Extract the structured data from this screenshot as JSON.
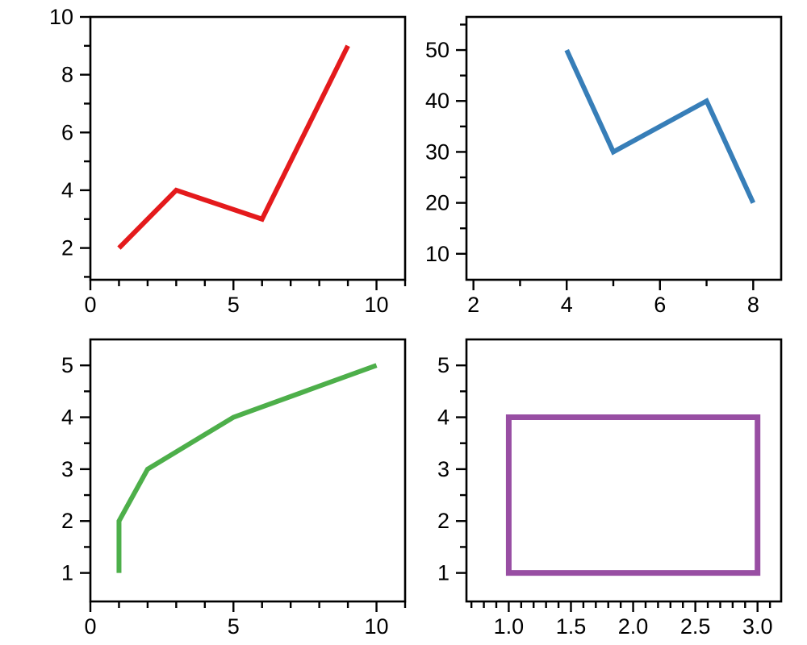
{
  "figure": {
    "background": "#ffffff",
    "axis_color": "#000000",
    "tick_label_color": "#000000",
    "grid": false,
    "legend": null
  },
  "chart_data": [
    {
      "panel": "top-left",
      "type": "line",
      "title": "",
      "xlabel": "",
      "ylabel": "",
      "x": [
        1,
        3,
        6,
        9
      ],
      "y": [
        2,
        4,
        3,
        9
      ],
      "color": "#e41a1c",
      "line_width": 6,
      "closed": false,
      "xlim": [
        0,
        11
      ],
      "ylim": [
        0.9,
        10
      ],
      "xticks": [
        0,
        5,
        10
      ],
      "xtick_labels": [
        "0",
        "5",
        "10"
      ],
      "yticks": [
        2,
        4,
        6,
        8,
        10
      ],
      "ytick_labels": [
        "2",
        "4",
        "6",
        "8",
        "10"
      ],
      "xminor": [
        1,
        2,
        3,
        4,
        6,
        7,
        8,
        9,
        11
      ],
      "yminor": [
        1,
        3,
        5,
        7,
        9
      ]
    },
    {
      "panel": "top-right",
      "type": "line",
      "title": "",
      "xlabel": "",
      "ylabel": "",
      "x": [
        4,
        5,
        7,
        8
      ],
      "y": [
        50,
        30,
        40,
        20
      ],
      "color": "#377eb8",
      "line_width": 6,
      "closed": false,
      "xlim": [
        1.85,
        8.6
      ],
      "ylim": [
        4.9,
        56.5
      ],
      "xticks": [
        2,
        4,
        6,
        8
      ],
      "xtick_labels": [
        "2",
        "4",
        "6",
        "8"
      ],
      "yticks": [
        10,
        20,
        30,
        40,
        50
      ],
      "ytick_labels": [
        "10",
        "20",
        "30",
        "40",
        "50"
      ],
      "xminor": [
        3,
        5,
        7
      ],
      "yminor": [
        15,
        25,
        35,
        45,
        55
      ]
    },
    {
      "panel": "bottom-left",
      "type": "line",
      "title": "",
      "xlabel": "",
      "ylabel": "",
      "x": [
        1,
        1,
        2,
        5,
        10
      ],
      "y": [
        1,
        2,
        3,
        4,
        5
      ],
      "color": "#4daf4a",
      "line_width": 6,
      "closed": false,
      "xlim": [
        0,
        11
      ],
      "ylim": [
        0.45,
        5.5
      ],
      "xticks": [
        0,
        5,
        10
      ],
      "xtick_labels": [
        "0",
        "5",
        "10"
      ],
      "yticks": [
        1,
        2,
        3,
        4,
        5
      ],
      "ytick_labels": [
        "1",
        "2",
        "3",
        "4",
        "5"
      ],
      "xminor": [
        1,
        2,
        3,
        4,
        6,
        7,
        8,
        9,
        11
      ],
      "yminor": [
        1.5,
        2.5,
        3.5,
        4.5
      ]
    },
    {
      "panel": "bottom-right",
      "type": "line",
      "shape": "rectangle",
      "title": "",
      "xlabel": "",
      "ylabel": "",
      "x": [
        1,
        3,
        3,
        1
      ],
      "y": [
        1,
        1,
        4,
        4
      ],
      "color": "#984ea3",
      "line_width": 7,
      "closed": true,
      "xlim": [
        0.66,
        3.19
      ],
      "ylim": [
        0.45,
        5.5
      ],
      "xticks": [
        1.0,
        1.5,
        2.0,
        2.5,
        3.0
      ],
      "xtick_labels": [
        "1.0",
        "1.5",
        "2.0",
        "2.5",
        "3.0"
      ],
      "yticks": [
        1,
        2,
        3,
        4,
        5
      ],
      "ytick_labels": [
        "1",
        "2",
        "3",
        "4",
        "5"
      ],
      "xminor": [
        0.7,
        0.8,
        0.9,
        1.1,
        1.2,
        1.3,
        1.4,
        1.6,
        1.7,
        1.8,
        1.9,
        2.1,
        2.2,
        2.3,
        2.4,
        2.6,
        2.7,
        2.8,
        2.9,
        3.1
      ],
      "yminor": [
        1.5,
        2.5,
        3.5,
        4.5
      ]
    }
  ]
}
